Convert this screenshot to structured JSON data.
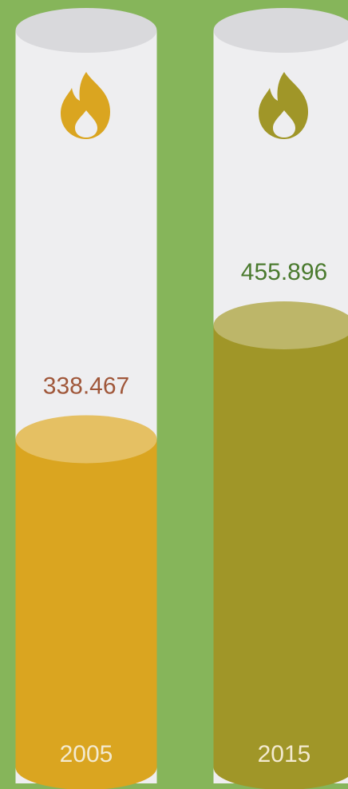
{
  "chart_data": {
    "type": "bar",
    "categories": [
      "2005",
      "2015"
    ],
    "values": [
      338.467,
      455.896
    ],
    "colors": [
      "#daa520",
      "#a09628"
    ],
    "label_colors": [
      "#a0573a",
      "#4a7a2e"
    ]
  }
}
